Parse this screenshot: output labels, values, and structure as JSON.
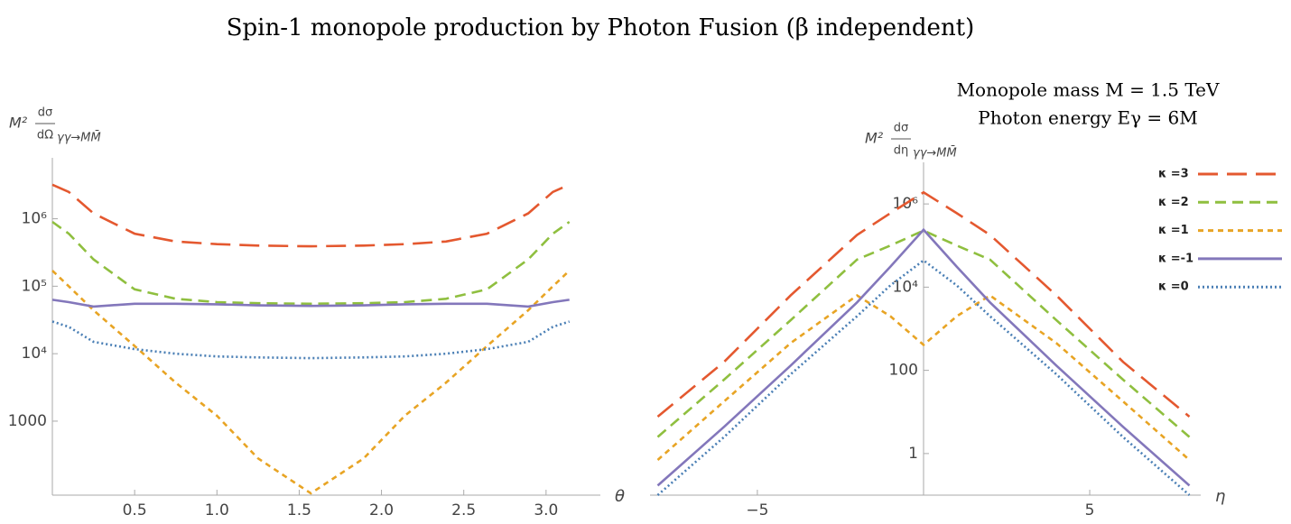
{
  "title": "Spin-1 monopole production by Photon Fusion  (β independent)",
  "annotations": [
    "Monopole mass M = 1.5 TeV",
    "Photon energy Eγ = 6M"
  ],
  "chart_data": [
    {
      "type": "line",
      "log_y": true,
      "legend": false,
      "xlabel": "θ",
      "ylabel": {
        "prefix": "M²",
        "numerator": "dσ",
        "denominator": "dΩ",
        "subscript": "γγ→MM̄"
      },
      "xlim": [
        0,
        3.33
      ],
      "ylim": [
        80,
        8000000
      ],
      "xticks": [
        0.5,
        {
          "value": 1,
          "label": "1.0"
        },
        1.5,
        {
          "value": 2,
          "label": "2.0"
        },
        2.5,
        {
          "value": 3,
          "label": "3.0"
        }
      ],
      "yticks": [
        1000,
        {
          "value": 10000,
          "label": "10⁴"
        },
        {
          "value": 100000,
          "label": "10⁵"
        },
        {
          "value": 1000000,
          "label": "10⁶"
        }
      ],
      "x": [
        0,
        0.1,
        0.25,
        0.5,
        0.75,
        1.0,
        1.25,
        1.5708,
        1.8916,
        2.1416,
        2.3916,
        2.6416,
        2.8916,
        3.0416,
        3.1416
      ],
      "series": [
        {
          "name": "κ =3",
          "color": "#e4582f",
          "dash": "long",
          "values": [
            3200000,
            2500000,
            1200000,
            600000,
            460000,
            420000,
            400000,
            390000,
            400000,
            420000,
            460000,
            600000,
            1200000,
            2500000,
            3200000
          ]
        },
        {
          "name": "κ =2",
          "color": "#8fbf3f",
          "dash": "medium",
          "values": [
            900000,
            600000,
            250000,
            90000,
            65000,
            58000,
            56000,
            55000,
            56000,
            58000,
            65000,
            90000,
            250000,
            600000,
            900000
          ]
        },
        {
          "name": "κ =1",
          "color": "#e8a424",
          "dash": "short",
          "values": [
            170000,
            100000,
            44000,
            13000,
            3700,
            1200,
            280,
            85,
            280,
            1200,
            3700,
            13000,
            44000,
            100000,
            170000
          ]
        },
        {
          "name": "κ =-1",
          "color": "#8377bb",
          "dash": "solid",
          "values": [
            63000,
            58000,
            50000,
            55000,
            55000,
            54000,
            52000,
            51000,
            52000,
            54000,
            55000,
            55000,
            50000,
            58000,
            63000
          ]
        },
        {
          "name": "κ =0",
          "color": "#4a7fb5",
          "dash": "dotted",
          "values": [
            30000,
            25000,
            15000,
            11700,
            10000,
            9100,
            8800,
            8600,
            8800,
            9100,
            10000,
            11700,
            15000,
            25000,
            30000
          ]
        }
      ]
    },
    {
      "type": "line",
      "log_y": true,
      "legend": "right",
      "xlabel": "η",
      "ylabel": {
        "prefix": "M²",
        "numerator": "dσ",
        "denominator": "dη",
        "subscript": "γγ→MM̄"
      },
      "xlim": [
        -8.23,
        8.34
      ],
      "ylim": [
        0.1,
        10000000
      ],
      "xticks": [
        {
          "value": -5,
          "label": "−5"
        },
        5
      ],
      "yticks": [
        1,
        100,
        {
          "value": 10000,
          "label": "10⁴"
        },
        {
          "value": 1000000,
          "label": "10⁶"
        }
      ],
      "x": [
        -8,
        -6,
        -4,
        -2,
        -1,
        0,
        1,
        2,
        4,
        6,
        8
      ],
      "series": [
        {
          "name": "κ =3",
          "color": "#e4582f",
          "dash": "long",
          "values": [
            7.7,
            160,
            6300,
            180000,
            600000,
            1900000,
            600000,
            180000,
            6300,
            160,
            7.7
          ]
        },
        {
          "name": "κ =2",
          "color": "#8fbf3f",
          "dash": "medium",
          "values": [
            2.5,
            60,
            1600,
            46000,
            100000,
            230000,
            100000,
            46000,
            1600,
            60,
            2.5
          ]
        },
        {
          "name": "κ =1",
          "color": "#e8a424",
          "dash": "short",
          "values": [
            0.7,
            18,
            450,
            6300,
            2000,
            410,
            2000,
            6300,
            450,
            18,
            0.7
          ]
        },
        {
          "name": "κ =-1",
          "color": "#8377bb",
          "dash": "solid",
          "values": [
            0.17,
            4.4,
            130,
            4300,
            31000,
            240000,
            31000,
            4300,
            130,
            4.4,
            0.17
          ]
        },
        {
          "name": "κ =0",
          "color": "#4a7fb5",
          "dash": "dotted",
          "values": [
            0.1,
            2.5,
            80,
            2000,
            11000,
            44000,
            11000,
            2000,
            80,
            2.5,
            0.1
          ]
        }
      ]
    }
  ]
}
